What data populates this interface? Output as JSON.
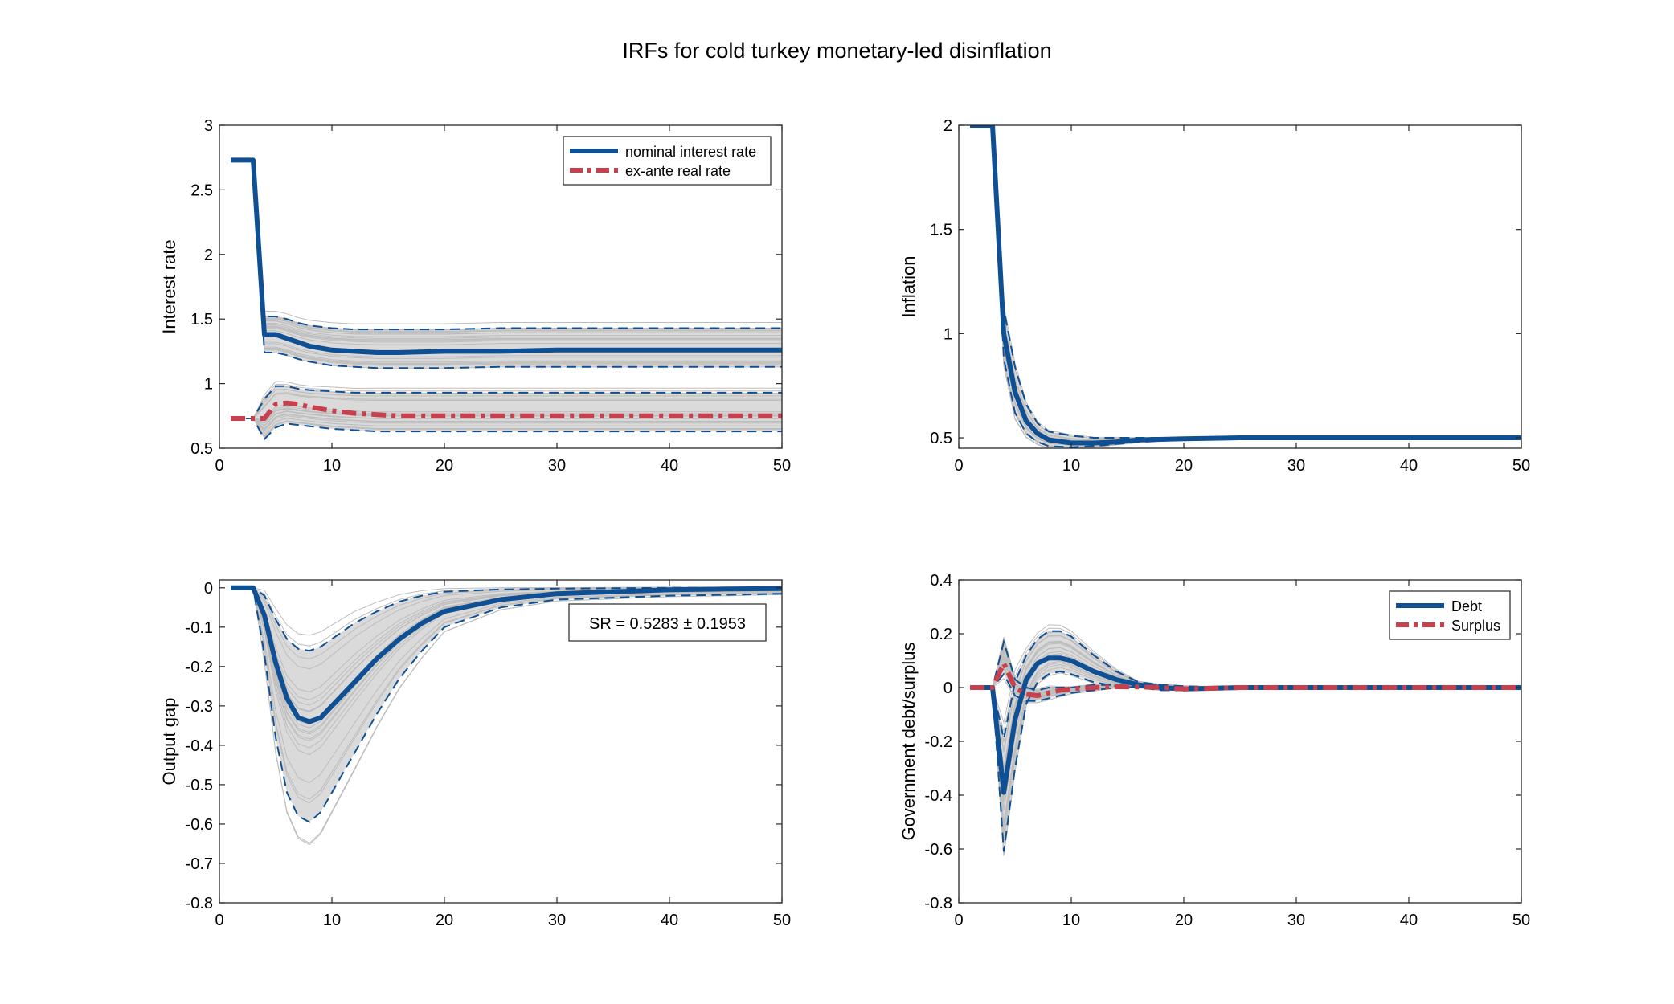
{
  "figure_title": "IRFs for cold turkey monetary-led disinflation",
  "colors": {
    "blue": "#0F4F93",
    "red": "#C8404E",
    "band_fill": "#DADADA",
    "draw_line": "#BDBDBD",
    "axis": "#262626"
  },
  "chart_data": [
    {
      "type": "line",
      "title": "",
      "xlabel": "",
      "ylabel": "Interest rate",
      "xlim": [
        0,
        50
      ],
      "ylim": [
        0.5,
        3
      ],
      "x_ticks": [
        0,
        10,
        20,
        30,
        40,
        50
      ],
      "y_ticks": [
        0.5,
        1,
        1.5,
        2,
        2.5,
        3
      ],
      "y_tick_labels": [
        "0.5",
        "1",
        "1.5",
        "2",
        "2.5",
        "3"
      ],
      "grid": false,
      "legend_position": "top-right",
      "legend": [
        "nominal interest rate",
        "ex-ante real rate"
      ],
      "annotation": "",
      "x": [
        1,
        2,
        3,
        4,
        5,
        6,
        7,
        8,
        10,
        12,
        14,
        16,
        20,
        25,
        30,
        40,
        50
      ],
      "series": [
        {
          "name": "nominal interest rate",
          "color": "blue",
          "style": "solid",
          "values": [
            2.73,
            2.73,
            2.73,
            1.38,
            1.38,
            1.35,
            1.32,
            1.29,
            1.26,
            1.25,
            1.24,
            1.24,
            1.25,
            1.25,
            1.26,
            1.26,
            1.26
          ],
          "lower": [
            2.73,
            2.73,
            2.73,
            1.24,
            1.24,
            1.22,
            1.19,
            1.17,
            1.14,
            1.13,
            1.12,
            1.12,
            1.12,
            1.13,
            1.13,
            1.13,
            1.13
          ],
          "upper": [
            2.73,
            2.73,
            2.73,
            1.52,
            1.52,
            1.5,
            1.47,
            1.45,
            1.43,
            1.42,
            1.42,
            1.42,
            1.42,
            1.43,
            1.43,
            1.43,
            1.43
          ]
        },
        {
          "name": "ex-ante real rate",
          "color": "red",
          "style": "dashdot",
          "values": [
            0.73,
            0.73,
            0.73,
            0.73,
            0.84,
            0.85,
            0.84,
            0.82,
            0.79,
            0.77,
            0.76,
            0.75,
            0.75,
            0.75,
            0.75,
            0.75,
            0.75
          ],
          "lower": [
            0.73,
            0.73,
            0.73,
            0.57,
            0.66,
            0.69,
            0.68,
            0.67,
            0.65,
            0.64,
            0.63,
            0.63,
            0.63,
            0.63,
            0.63,
            0.63,
            0.63
          ],
          "upper": [
            0.73,
            0.73,
            0.73,
            0.88,
            0.98,
            0.98,
            0.96,
            0.95,
            0.94,
            0.93,
            0.93,
            0.93,
            0.93,
            0.93,
            0.93,
            0.93,
            0.93
          ]
        }
      ]
    },
    {
      "type": "line",
      "title": "",
      "xlabel": "",
      "ylabel": "Inflation",
      "xlim": [
        0,
        50
      ],
      "ylim": [
        0.45,
        2.0
      ],
      "x_ticks": [
        0,
        10,
        20,
        30,
        40,
        50
      ],
      "y_ticks": [
        0.5,
        1,
        1.5,
        2
      ],
      "y_tick_labels": [
        "0.5",
        "1",
        "1.5",
        "2"
      ],
      "grid": false,
      "legend_position": "",
      "legend": [],
      "annotation": "",
      "x": [
        1,
        2,
        3,
        4,
        5,
        6,
        7,
        8,
        10,
        12,
        14,
        16,
        20,
        25,
        30,
        40,
        50
      ],
      "series": [
        {
          "name": "",
          "color": "blue",
          "style": "solid",
          "values": [
            2.0,
            2.0,
            2.0,
            1.0,
            0.72,
            0.58,
            0.52,
            0.49,
            0.475,
            0.475,
            0.48,
            0.49,
            0.495,
            0.5,
            0.5,
            0.5,
            0.5
          ],
          "lower": [
            2.0,
            2.0,
            2.0,
            0.88,
            0.62,
            0.52,
            0.48,
            0.46,
            0.455,
            0.46,
            0.47,
            0.48,
            0.49,
            0.495,
            0.5,
            0.5,
            0.5
          ],
          "upper": [
            2.0,
            2.0,
            2.0,
            1.12,
            0.84,
            0.66,
            0.57,
            0.53,
            0.51,
            0.5,
            0.5,
            0.5,
            0.5,
            0.5,
            0.5,
            0.5,
            0.5
          ]
        }
      ]
    },
    {
      "type": "line",
      "title": "",
      "xlabel": "",
      "ylabel": "Output gap",
      "xlim": [
        0,
        50
      ],
      "ylim": [
        -0.8,
        0.02
      ],
      "x_ticks": [
        0,
        10,
        20,
        30,
        40,
        50
      ],
      "y_ticks": [
        -0.8,
        -0.7,
        -0.6,
        -0.5,
        -0.4,
        -0.3,
        -0.2,
        -0.1,
        0
      ],
      "y_tick_labels": [
        "-0.8",
        "-0.7",
        "-0.6",
        "-0.5",
        "-0.4",
        "-0.3",
        "-0.2",
        "-0.1",
        "0"
      ],
      "grid": false,
      "legend_position": "",
      "legend": [],
      "annotation": "SR = 0.5283 ± 0.1953",
      "x": [
        1,
        2,
        3,
        4,
        5,
        6,
        7,
        8,
        9,
        10,
        12,
        14,
        16,
        18,
        20,
        25,
        30,
        35,
        40,
        45,
        50
      ],
      "series": [
        {
          "name": "",
          "color": "blue",
          "style": "solid",
          "values": [
            0,
            0,
            0,
            -0.07,
            -0.19,
            -0.28,
            -0.33,
            -0.34,
            -0.33,
            -0.3,
            -0.24,
            -0.18,
            -0.13,
            -0.09,
            -0.06,
            -0.03,
            -0.015,
            -0.01,
            -0.005,
            -0.003,
            -0.002
          ],
          "lower": [
            0,
            0,
            0,
            -0.17,
            -0.38,
            -0.52,
            -0.58,
            -0.595,
            -0.57,
            -0.52,
            -0.42,
            -0.32,
            -0.23,
            -0.16,
            -0.1,
            -0.05,
            -0.03,
            -0.025,
            -0.02,
            -0.018,
            -0.015
          ],
          "upper": [
            0,
            0,
            0,
            -0.02,
            -0.08,
            -0.13,
            -0.155,
            -0.16,
            -0.15,
            -0.13,
            -0.09,
            -0.06,
            -0.035,
            -0.02,
            -0.01,
            -0.004,
            -0.002,
            -0.001,
            0,
            0,
            0
          ]
        }
      ]
    },
    {
      "type": "line",
      "title": "",
      "xlabel": "",
      "ylabel": "Government debt/surplus",
      "xlim": [
        0,
        50
      ],
      "ylim": [
        -0.8,
        0.4
      ],
      "x_ticks": [
        0,
        10,
        20,
        30,
        40,
        50
      ],
      "y_ticks": [
        -0.8,
        -0.6,
        -0.4,
        -0.2,
        0,
        0.2,
        0.4
      ],
      "y_tick_labels": [
        "-0.8",
        "-0.6",
        "-0.4",
        "-0.2",
        "0",
        "0.2",
        "0.4"
      ],
      "grid": false,
      "legend_position": "top-right",
      "legend": [
        "Debt",
        "Surplus"
      ],
      "annotation": "",
      "x": [
        1,
        2,
        3,
        4,
        5,
        6,
        7,
        8,
        9,
        10,
        12,
        14,
        16,
        18,
        20,
        25,
        30,
        40,
        50
      ],
      "series": [
        {
          "name": "Debt",
          "color": "blue",
          "style": "solid",
          "values": [
            0,
            0,
            0,
            -0.39,
            -0.12,
            0.03,
            0.09,
            0.11,
            0.11,
            0.1,
            0.06,
            0.03,
            0.01,
            0.0,
            -0.005,
            0,
            0,
            0,
            0
          ],
          "lower": [
            0,
            0,
            0,
            -0.61,
            -0.3,
            -0.06,
            0.02,
            0.05,
            0.06,
            0.05,
            0.02,
            0.005,
            0,
            -0.01,
            -0.01,
            0,
            0,
            0,
            0
          ],
          "upper": [
            0,
            0,
            0,
            -0.19,
            0.02,
            0.12,
            0.18,
            0.21,
            0.21,
            0.19,
            0.12,
            0.06,
            0.02,
            0.01,
            0.005,
            0,
            0,
            0,
            0
          ]
        },
        {
          "name": "Surplus",
          "color": "red",
          "style": "dashdot",
          "values": [
            0,
            0,
            0,
            0.09,
            0.0,
            -0.025,
            -0.03,
            -0.02,
            -0.01,
            -0.005,
            0,
            0.003,
            0.002,
            0,
            -0.005,
            0,
            0,
            0,
            0
          ],
          "lower": [
            0,
            0,
            0,
            0.05,
            -0.03,
            -0.05,
            -0.05,
            -0.04,
            -0.03,
            -0.02,
            -0.01,
            0,
            0,
            0,
            -0.01,
            0,
            0,
            0,
            0
          ],
          "upper": [
            0,
            0,
            0,
            0.17,
            0.03,
            0.0,
            -0.01,
            0.0,
            0.0,
            0.0,
            0.01,
            0.01,
            0.005,
            0.005,
            0,
            0,
            0,
            0,
            0
          ]
        }
      ]
    }
  ]
}
